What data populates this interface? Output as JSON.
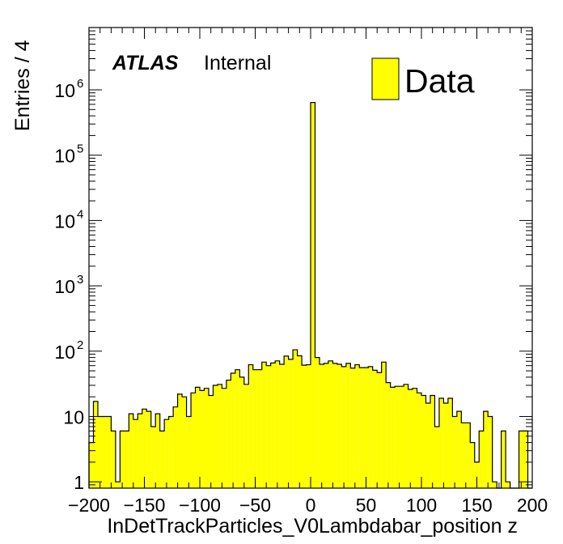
{
  "chart_data": {
    "type": "bar",
    "xlabel": "InDetTrackParticles_V0Lambdabar_position z",
    "ylabel": "Entries / 4",
    "xlim": [
      -200,
      200
    ],
    "ylim": [
      0.8,
      9000000
    ],
    "yscale": "log",
    "bin_width": 4,
    "x_ticks": [
      -200,
      -150,
      -100,
      -50,
      0,
      50,
      100,
      150,
      200
    ],
    "x_tick_labels": [
      "−200",
      "−150",
      "−100",
      "−50",
      "0",
      "50",
      "100",
      "150",
      "200"
    ],
    "y_ticks": [
      {
        "value": 1,
        "base": "1",
        "exp": ""
      },
      {
        "value": 10,
        "base": "10",
        "exp": ""
      },
      {
        "value": 100,
        "base": "10",
        "exp": "2"
      },
      {
        "value": 1000,
        "base": "10",
        "exp": "3"
      },
      {
        "value": 10000,
        "base": "10",
        "exp": "4"
      },
      {
        "value": 100000,
        "base": "10",
        "exp": "5"
      },
      {
        "value": 1000000,
        "base": "10",
        "exp": "6"
      }
    ],
    "series": [
      {
        "name": "Data",
        "color": "#ffff00",
        "values": [
          4,
          17,
          10,
          10,
          10,
          6,
          1,
          6,
          6,
          11,
          9,
          11,
          13,
          12,
          7,
          11,
          6,
          9,
          10,
          14,
          22,
          20,
          10,
          23,
          28,
          25,
          27,
          21,
          30,
          31,
          27,
          36,
          46,
          52,
          40,
          31,
          62,
          52,
          52,
          68,
          60,
          66,
          71,
          63,
          84,
          75,
          105,
          85,
          61,
          62,
          640000,
          80,
          63,
          65,
          71,
          65,
          63,
          58,
          65,
          55,
          62,
          56,
          56,
          58,
          51,
          47,
          68,
          33,
          28,
          29,
          29,
          31,
          26,
          27,
          23,
          21,
          16,
          21,
          7,
          19,
          16,
          19,
          10,
          12,
          8,
          8,
          4,
          2,
          6,
          12,
          10,
          1,
          0,
          6,
          1,
          0,
          0,
          6,
          6,
          0
        ]
      }
    ],
    "legend": {
      "position": "top-right",
      "entries": [
        "Data"
      ]
    },
    "annotation": {
      "experiment": "ATLAS",
      "status": "Internal"
    }
  }
}
